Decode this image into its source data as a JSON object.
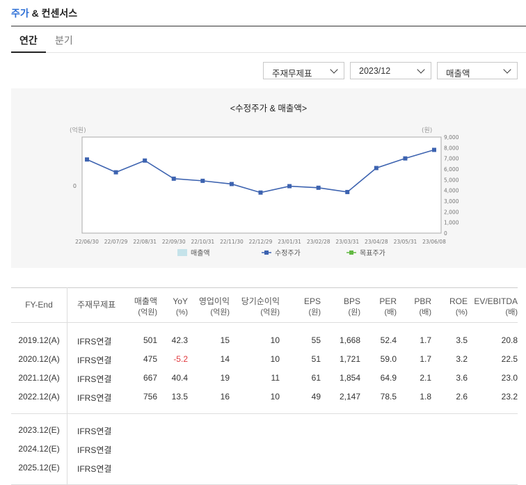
{
  "header": {
    "title_accent": "주가",
    "title_rest": " & 컨센서스"
  },
  "tabs": [
    {
      "label": "연간",
      "active": true
    },
    {
      "label": "분기",
      "active": false
    }
  ],
  "filters": {
    "statement": "주재무제표",
    "period": "2023/12",
    "metric": "매출액"
  },
  "chart": {
    "title": "<수정주가 & 매출액>",
    "left_unit": "(억원)",
    "right_unit": "(원)",
    "left_tick": "0",
    "legend": [
      "매출액",
      "수정주가",
      "목표주가"
    ]
  },
  "chart_data": {
    "type": "line",
    "x": [
      "22/06/30",
      "22/07/29",
      "22/08/31",
      "22/09/30",
      "22/10/31",
      "22/11/30",
      "22/12/29",
      "23/01/31",
      "23/02/28",
      "23/03/31",
      "23/04/28",
      "23/05/31",
      "23/06/08"
    ],
    "series": [
      {
        "name": "수정주가",
        "values": [
          6900,
          5700,
          6800,
          5100,
          4900,
          4600,
          3800,
          4400,
          4250,
          3850,
          6100,
          7000,
          7800
        ]
      }
    ],
    "yticks_right": [
      "9,000",
      "8,000",
      "7,000",
      "6,000",
      "5,000",
      "4,000",
      "3,000",
      "2,000",
      "1,000",
      "0"
    ],
    "ylim_right": [
      0,
      9000
    ]
  },
  "table": {
    "headers": [
      {
        "l1": "FY-End",
        "l2": ""
      },
      {
        "l1": "주재무제표",
        "l2": ""
      },
      {
        "l1": "매출액",
        "l2": "(억원)"
      },
      {
        "l1": "YoY",
        "l2": "(%)"
      },
      {
        "l1": "영업이익",
        "l2": "(억원)"
      },
      {
        "l1": "당기순이익",
        "l2": "(억원)"
      },
      {
        "l1": "EPS",
        "l2": "(원)"
      },
      {
        "l1": "BPS",
        "l2": "(원)"
      },
      {
        "l1": "PER",
        "l2": "(배)"
      },
      {
        "l1": "PBR",
        "l2": "(배)"
      },
      {
        "l1": "ROE",
        "l2": "(%)"
      },
      {
        "l1": "EV/EBITDA",
        "l2": "(배)"
      }
    ],
    "actual_rows": [
      [
        "2019.12(A)",
        "IFRS연결",
        "501",
        "42.3",
        "15",
        "10",
        "55",
        "1,668",
        "52.4",
        "1.7",
        "3.5",
        "20.8"
      ],
      [
        "2020.12(A)",
        "IFRS연결",
        "475",
        "-5.2",
        "14",
        "10",
        "51",
        "1,721",
        "59.0",
        "1.7",
        "3.2",
        "22.5"
      ],
      [
        "2021.12(A)",
        "IFRS연결",
        "667",
        "40.4",
        "19",
        "11",
        "61",
        "1,854",
        "64.9",
        "2.1",
        "3.6",
        "23.0"
      ],
      [
        "2022.12(A)",
        "IFRS연결",
        "756",
        "13.5",
        "16",
        "10",
        "49",
        "2,147",
        "78.5",
        "1.8",
        "2.6",
        "23.2"
      ]
    ],
    "estimate_rows": [
      [
        "2023.12(E)",
        "IFRS연결"
      ],
      [
        "2024.12(E)",
        "IFRS연결"
      ],
      [
        "2025.12(E)",
        "IFRS연결"
      ]
    ]
  }
}
